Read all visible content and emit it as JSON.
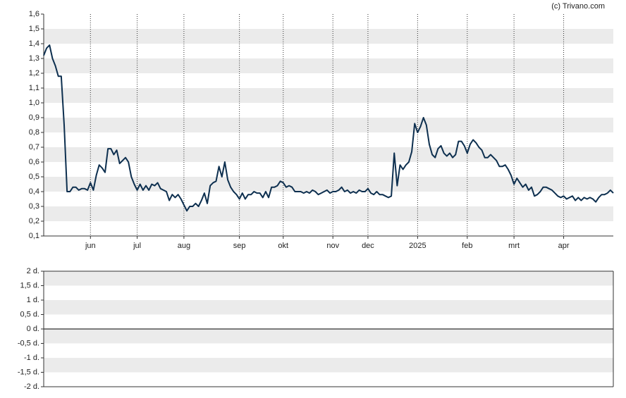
{
  "source": "(c) Trivano.com",
  "chart_data": [
    {
      "type": "line",
      "series": [
        {
          "color": "#0d2f4f",
          "values": [
            1.32,
            1.37,
            1.39,
            1.3,
            1.25,
            1.18,
            1.18,
            0.85,
            0.4,
            0.4,
            0.43,
            0.43,
            0.41,
            0.42,
            0.42,
            0.41,
            0.46,
            0.41,
            0.51,
            0.58,
            0.56,
            0.53,
            0.69,
            0.69,
            0.65,
            0.68,
            0.59,
            0.61,
            0.63,
            0.6,
            0.5,
            0.45,
            0.41,
            0.45,
            0.41,
            0.44,
            0.41,
            0.45,
            0.44,
            0.46,
            0.42,
            0.41,
            0.4,
            0.34,
            0.38,
            0.36,
            0.38,
            0.35,
            0.31,
            0.27,
            0.3,
            0.3,
            0.32,
            0.3,
            0.34,
            0.39,
            0.32,
            0.44,
            0.46,
            0.47,
            0.57,
            0.5,
            0.6,
            0.48,
            0.43,
            0.4,
            0.38,
            0.35,
            0.39,
            0.35,
            0.38,
            0.38,
            0.4,
            0.39,
            0.39,
            0.36,
            0.4,
            0.36,
            0.43,
            0.43,
            0.44,
            0.47,
            0.46,
            0.43,
            0.44,
            0.43,
            0.4,
            0.4,
            0.4,
            0.39,
            0.4,
            0.39,
            0.41,
            0.4,
            0.38,
            0.39,
            0.4,
            0.41,
            0.39,
            0.4,
            0.4,
            0.41,
            0.43,
            0.4,
            0.41,
            0.39,
            0.4,
            0.39,
            0.41,
            0.4,
            0.4,
            0.42,
            0.39,
            0.38,
            0.4,
            0.38,
            0.38,
            0.37,
            0.36,
            0.37,
            0.66,
            0.44,
            0.58,
            0.55,
            0.58,
            0.6,
            0.67,
            0.86,
            0.8,
            0.84,
            0.9,
            0.85,
            0.72,
            0.65,
            0.63,
            0.69,
            0.71,
            0.66,
            0.64,
            0.66,
            0.63,
            0.65,
            0.74,
            0.74,
            0.71,
            0.66,
            0.72,
            0.75,
            0.73,
            0.7,
            0.68,
            0.63,
            0.63,
            0.65,
            0.63,
            0.61,
            0.57,
            0.57,
            0.58,
            0.55,
            0.51,
            0.45,
            0.49,
            0.46,
            0.43,
            0.45,
            0.41,
            0.43,
            0.37,
            0.38,
            0.4,
            0.43,
            0.43,
            0.42,
            0.41,
            0.39,
            0.37,
            0.36,
            0.37,
            0.35,
            0.36,
            0.37,
            0.34,
            0.36,
            0.34,
            0.36,
            0.35,
            0.36,
            0.35,
            0.33,
            0.36,
            0.38,
            0.38,
            0.39,
            0.41,
            0.39
          ]
        }
      ],
      "xlim": [
        0,
        195
      ],
      "xticks": [
        {
          "value": 16,
          "label": "jun"
        },
        {
          "value": 32,
          "label": "jul"
        },
        {
          "value": 48,
          "label": "aug"
        },
        {
          "value": 67,
          "label": "sep"
        },
        {
          "value": 82,
          "label": "okt"
        },
        {
          "value": 99,
          "label": "nov"
        },
        {
          "value": 111,
          "label": "dec"
        },
        {
          "value": 128,
          "label": "2025"
        },
        {
          "value": 145,
          "label": "feb"
        },
        {
          "value": 161,
          "label": "mrt"
        },
        {
          "value": 178,
          "label": "apr"
        }
      ],
      "ylim": [
        0.1,
        1.6
      ],
      "yticks": [
        {
          "value": 0.1,
          "label": "0,1"
        },
        {
          "value": 0.2,
          "label": "0,2"
        },
        {
          "value": 0.3,
          "label": "0,3"
        },
        {
          "value": 0.4,
          "label": "0,4"
        },
        {
          "value": 0.5,
          "label": "0,5"
        },
        {
          "value": 0.6,
          "label": "0,6"
        },
        {
          "value": 0.7,
          "label": "0,7"
        },
        {
          "value": 0.8,
          "label": "0,8"
        },
        {
          "value": 0.9,
          "label": "0,9"
        },
        {
          "value": 1.0,
          "label": "1,0"
        },
        {
          "value": 1.1,
          "label": "1,1"
        },
        {
          "value": 1.2,
          "label": "1,2"
        },
        {
          "value": 1.3,
          "label": "1,3"
        },
        {
          "value": 1.4,
          "label": "1,4"
        },
        {
          "value": 1.5,
          "label": "1,5"
        },
        {
          "value": 1.6,
          "label": "1,6"
        }
      ],
      "stripes": true
    },
    {
      "type": "line",
      "ylim": [
        -2,
        2
      ],
      "yticks": [
        {
          "value": -2,
          "label": "-2 d."
        },
        {
          "value": -1.5,
          "label": "-1,5 d."
        },
        {
          "value": -1,
          "label": "-1 d."
        },
        {
          "value": -0.5,
          "label": "-0,5 d."
        },
        {
          "value": 0,
          "label": "0 d."
        },
        {
          "value": 0.5,
          "label": "0,5 d."
        },
        {
          "value": 1,
          "label": "1 d."
        },
        {
          "value": 1.5,
          "label": "1,5 d."
        },
        {
          "value": 2,
          "label": "2 d."
        }
      ],
      "stripes": true
    }
  ]
}
